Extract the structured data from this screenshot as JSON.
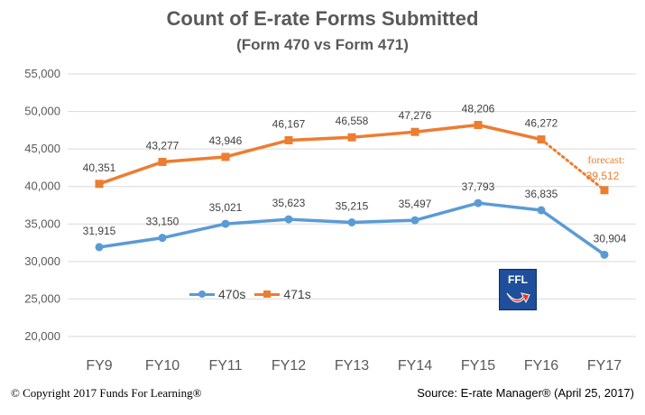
{
  "title": "Count of E-rate Forms Submitted",
  "subtitle": "(Form 470 vs Form 471)",
  "footer": {
    "copyright": "© Copyright 2017 Funds For Learning®",
    "source": "Source: E-rate Manager® (April 25, 2017)"
  },
  "logo_text": "FFL",
  "forecast_label": "forecast:",
  "colors": {
    "series470": "#5B9BD5",
    "series471": "#ED7D31",
    "axis_text": "#595959",
    "grid": "#d9d9d9"
  },
  "chart_data": {
    "type": "line",
    "categories": [
      "FY9",
      "FY10",
      "FY11",
      "FY12",
      "FY13",
      "FY14",
      "FY15",
      "FY16",
      "FY17"
    ],
    "ylim": [
      20000,
      55000
    ],
    "yticks": [
      20000,
      25000,
      30000,
      35000,
      40000,
      45000,
      50000,
      55000
    ],
    "ytick_labels": [
      "20,000",
      "25,000",
      "30,000",
      "35,000",
      "40,000",
      "45,000",
      "50,000",
      "55,000"
    ],
    "grid": true,
    "legend_position": "bottom-left",
    "series": [
      {
        "name": "470s",
        "values": [
          31915,
          33150,
          35021,
          35623,
          35215,
          35497,
          37793,
          36835,
          30904
        ],
        "labels": [
          "31,915",
          "33,150",
          "35,021",
          "35,623",
          "35,215",
          "35,497",
          "37,793",
          "36,835",
          "30,904"
        ]
      },
      {
        "name": "471s",
        "values": [
          40351,
          43277,
          43946,
          46167,
          46558,
          47276,
          48206,
          46272,
          39512
        ],
        "labels": [
          "40,351",
          "43,277",
          "43,946",
          "46,167",
          "46,558",
          "47,276",
          "48,206",
          "46,272",
          "39,512"
        ],
        "forecast_from_index": 7
      }
    ]
  }
}
